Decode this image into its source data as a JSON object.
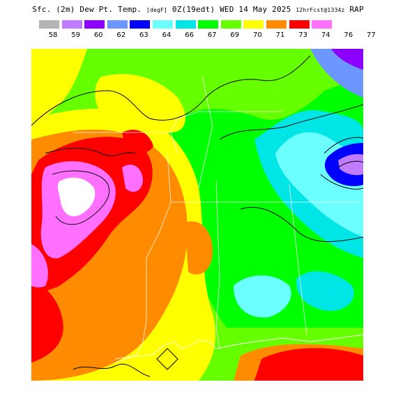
{
  "header": {
    "title_main": "Sfc. (2m) Dew Pt. Temp.",
    "title_units": "[degF]",
    "title_time": "0Z(19edt) WED 14 May 2025",
    "title_init": "12hrFcst@1334z",
    "title_model": "RAP"
  },
  "legend": {
    "items": [
      {
        "label": "58",
        "color": "#b4b4b4"
      },
      {
        "label": "59",
        "color": "#c07cff"
      },
      {
        "label": "60",
        "color": "#8c00ff"
      },
      {
        "label": "62",
        "color": "#6e96ff"
      },
      {
        "label": "63",
        "color": "#0000ff"
      },
      {
        "label": "64",
        "color": "#6cffff"
      },
      {
        "label": "66",
        "color": "#00e6e6"
      },
      {
        "label": "67",
        "color": "#00ff00"
      },
      {
        "label": "69",
        "color": "#66ff00"
      },
      {
        "label": "70",
        "color": "#ffff00"
      },
      {
        "label": "71",
        "color": "#ff8c00"
      },
      {
        "label": "73",
        "color": "#ff0000"
      },
      {
        "label": "74",
        "color": "#ff70ff"
      },
      {
        "label": "76",
        "color": "#ffffff"
      },
      {
        "label": "77",
        "color": "#ffffff"
      }
    ]
  }
}
